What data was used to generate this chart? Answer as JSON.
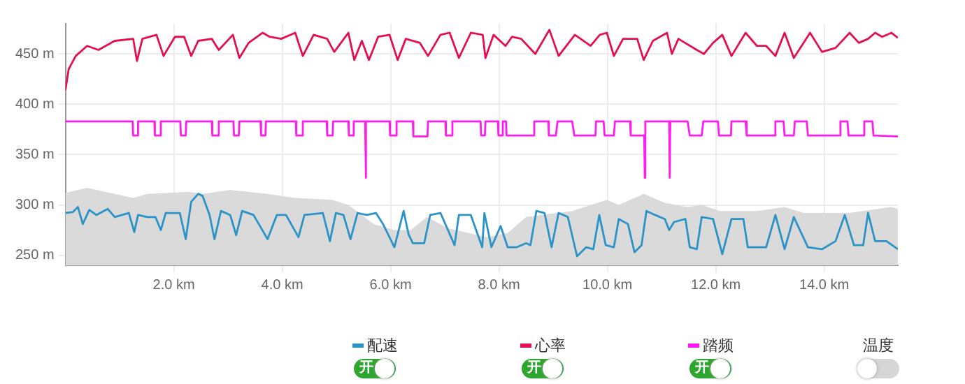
{
  "chart_data": {
    "type": "line",
    "xlim": [
      0,
      15.36
    ],
    "xticks": [
      {
        "value": 2,
        "label": "2.0 km"
      },
      {
        "value": 4,
        "label": "4.0 km"
      },
      {
        "value": 6,
        "label": "6.0 km"
      },
      {
        "value": 8,
        "label": "8.0 km"
      },
      {
        "value": 10,
        "label": "10.0 km"
      },
      {
        "value": 12,
        "label": "12.0 km"
      },
      {
        "value": 14,
        "label": "14.0 km"
      }
    ],
    "ylim": [
      240,
      480
    ],
    "yticks": [
      {
        "value": 250,
        "label": "250 m"
      },
      {
        "value": 300,
        "label": "300 m"
      },
      {
        "value": 350,
        "label": "350 m"
      },
      {
        "value": 400,
        "label": "400 m"
      },
      {
        "value": 450,
        "label": "450 m"
      }
    ],
    "grid": true,
    "legend": "bottom",
    "marker": "none",
    "line_style": "solid",
    "annotations": [
      "开"
    ],
    "series": [
      {
        "type": "area",
        "color": "#dadada",
        "x": [
          0,
          0.4,
          1.25,
          1.51,
          2.28,
          2.53,
          3.04,
          3.73,
          4.24,
          4.92,
          5.22,
          5.69,
          6.07,
          6.37,
          6.67,
          7.05,
          7.78,
          8.16,
          8.5,
          9.35,
          9.99,
          10.21,
          10.67,
          11.06,
          11.48,
          11.74,
          12.08,
          12.76,
          13.27,
          13.62,
          14.47,
          15.24,
          15.36
        ],
        "values": [
          312,
          317,
          307,
          311,
          313,
          311,
          315,
          311,
          307,
          305,
          300,
          281,
          275,
          275,
          288,
          277,
          268,
          272,
          288,
          294,
          305,
          300,
          311,
          302,
          298,
          300,
          294,
          294,
          298,
          292,
          292,
          298,
          296
        ]
      },
      {
        "name": "配速",
        "color": "#2b93c8",
        "x": [
          0,
          0.14,
          0.23,
          0.32,
          0.44,
          0.57,
          0.78,
          0.91,
          1.17,
          1.27,
          1.34,
          1.51,
          1.66,
          1.76,
          1.85,
          2.11,
          2.22,
          2.32,
          2.45,
          2.53,
          2.66,
          2.75,
          2.87,
          3.04,
          3.15,
          3.26,
          3.47,
          3.73,
          3.9,
          4.07,
          4.3,
          4.41,
          4.75,
          4.88,
          4.99,
          5.13,
          5.26,
          5.39,
          5.56,
          5.73,
          5.86,
          6.07,
          6.24,
          6.33,
          6.41,
          6.62,
          6.73,
          6.92,
          7.18,
          7.26,
          7.48,
          7.69,
          7.73,
          7.86,
          8.03,
          8.16,
          8.33,
          8.5,
          8.58,
          8.69,
          8.84,
          8.97,
          9.1,
          9.27,
          9.44,
          9.61,
          9.74,
          9.85,
          9.97,
          10.12,
          10.21,
          10.38,
          10.5,
          10.63,
          10.72,
          10.88,
          11.06,
          11.14,
          11.23,
          11.44,
          11.52,
          11.65,
          11.74,
          11.95,
          12.12,
          12.29,
          12.51,
          12.59,
          12.93,
          13.1,
          13.27,
          13.44,
          13.7,
          13.96,
          14.21,
          14.38,
          14.55,
          14.72,
          14.81,
          14.94,
          15.15,
          15.36
        ],
        "values": [
          292,
          293,
          298,
          281,
          295,
          290,
          296,
          288,
          292,
          273,
          290,
          288,
          288,
          275,
          292,
          292,
          266,
          303,
          311,
          309,
          290,
          266,
          294,
          290,
          270,
          294,
          290,
          266,
          290,
          290,
          268,
          290,
          292,
          264,
          292,
          290,
          266,
          292,
          290,
          292,
          281,
          258,
          294,
          271,
          262,
          262,
          290,
          292,
          260,
          290,
          290,
          258,
          292,
          258,
          279,
          258,
          258,
          262,
          260,
          294,
          292,
          258,
          292,
          288,
          249,
          258,
          256,
          290,
          260,
          258,
          286,
          281,
          253,
          260,
          294,
          290,
          286,
          275,
          283,
          286,
          258,
          256,
          288,
          286,
          251,
          286,
          286,
          258,
          258,
          290,
          256,
          288,
          258,
          256,
          264,
          290,
          260,
          260,
          292,
          264,
          264,
          256
        ]
      },
      {
        "name": "心率",
        "color": "#e2104f",
        "x": [
          0,
          0.06,
          0.19,
          0.4,
          0.61,
          0.91,
          1.25,
          1.32,
          1.42,
          1.68,
          1.81,
          2.02,
          2.19,
          2.32,
          2.45,
          2.7,
          2.83,
          3.09,
          3.21,
          3.38,
          3.64,
          3.77,
          3.98,
          4.24,
          4.38,
          4.58,
          4.83,
          4.96,
          5.22,
          5.33,
          5.47,
          5.6,
          5.77,
          5.98,
          6.13,
          6.28,
          6.54,
          6.69,
          6.92,
          7.09,
          7.26,
          7.48,
          7.7,
          7.75,
          7.9,
          8.12,
          8.24,
          8.41,
          8.67,
          8.93,
          9.1,
          9.4,
          9.69,
          9.86,
          9.99,
          10.12,
          10.29,
          10.55,
          10.67,
          10.84,
          11.1,
          11.19,
          11.31,
          11.65,
          11.78,
          11.95,
          12.12,
          12.29,
          12.55,
          12.76,
          12.93,
          13.1,
          13.27,
          13.44,
          13.74,
          13.96,
          14.21,
          14.47,
          14.64,
          14.81,
          14.94,
          15.07,
          15.24,
          15.36
        ],
        "values": [
          414,
          435,
          448,
          458,
          454,
          463,
          465,
          443,
          465,
          469,
          448,
          467,
          467,
          448,
          463,
          465,
          454,
          469,
          446,
          461,
          471,
          467,
          465,
          471,
          448,
          469,
          465,
          452,
          471,
          444,
          463,
          444,
          467,
          469,
          444,
          465,
          461,
          448,
          469,
          471,
          446,
          471,
          469,
          446,
          469,
          458,
          467,
          465,
          450,
          474,
          448,
          469,
          458,
          469,
          471,
          448,
          465,
          465,
          444,
          463,
          471,
          450,
          465,
          454,
          450,
          461,
          469,
          448,
          471,
          458,
          458,
          448,
          471,
          446,
          471,
          452,
          456,
          471,
          461,
          465,
          471,
          467,
          471,
          466
        ]
      },
      {
        "name": "踏频",
        "color": "#ff1cf0",
        "x": [
          0,
          1.24,
          1.25,
          1.33,
          1.34,
          1.64,
          1.65,
          1.75,
          1.76,
          2.12,
          2.13,
          2.22,
          2.23,
          2.7,
          2.71,
          2.82,
          2.83,
          3.1,
          3.11,
          3.2,
          3.21,
          3.6,
          3.61,
          3.69,
          3.7,
          4.25,
          4.26,
          4.37,
          4.38,
          4.82,
          4.83,
          4.93,
          4.94,
          5.22,
          5.23,
          5.31,
          5.32,
          5.53,
          5.54,
          5.55,
          5.98,
          5.99,
          6.1,
          6.11,
          6.41,
          6.42,
          6.68,
          6.69,
          7.01,
          7.02,
          7.13,
          7.14,
          7.66,
          7.67,
          7.74,
          7.75,
          7.98,
          7.99,
          8.06,
          8.07,
          8.13,
          8.14,
          8.63,
          8.65,
          8.91,
          8.92,
          9.05,
          9.08,
          9.35,
          9.39,
          9.78,
          9.79,
          9.93,
          9.95,
          10.12,
          10.14,
          10.42,
          10.43,
          10.68,
          10.69,
          10.7,
          11.14,
          11.15,
          11.16,
          11.48,
          11.52,
          11.74,
          11.77,
          12.04,
          12.06,
          12.28,
          12.29,
          12.55,
          12.57,
          13.09,
          13.1,
          13.25,
          13.27,
          13.44,
          13.46,
          13.68,
          13.7,
          14.28,
          14.3,
          14.43,
          14.45,
          14.72,
          14.74,
          14.89,
          14.91,
          15.36
        ],
        "values": [
          383,
          383,
          369,
          369,
          383,
          383,
          369,
          369,
          383,
          383,
          369,
          369,
          383,
          383,
          369,
          369,
          383,
          383,
          369,
          369,
          383,
          383,
          369,
          369,
          383,
          383,
          369,
          369,
          383,
          383,
          369,
          369,
          383,
          383,
          369,
          369,
          383,
          383,
          327,
          383,
          383,
          369,
          369,
          383,
          383,
          368,
          368,
          383,
          383,
          369,
          369,
          383,
          383,
          369,
          369,
          383,
          383,
          369,
          369,
          383,
          383,
          369,
          369,
          383,
          383,
          369,
          369,
          383,
          383,
          369,
          369,
          383,
          383,
          369,
          369,
          383,
          383,
          369,
          369,
          327,
          383,
          383,
          327,
          383,
          383,
          369,
          369,
          383,
          383,
          369,
          369,
          383,
          383,
          369,
          369,
          383,
          383,
          369,
          369,
          383,
          383,
          369,
          369,
          383,
          383,
          369,
          369,
          383,
          383,
          369,
          368
        ]
      },
      {
        "name": "温度"
      }
    ]
  }
}
